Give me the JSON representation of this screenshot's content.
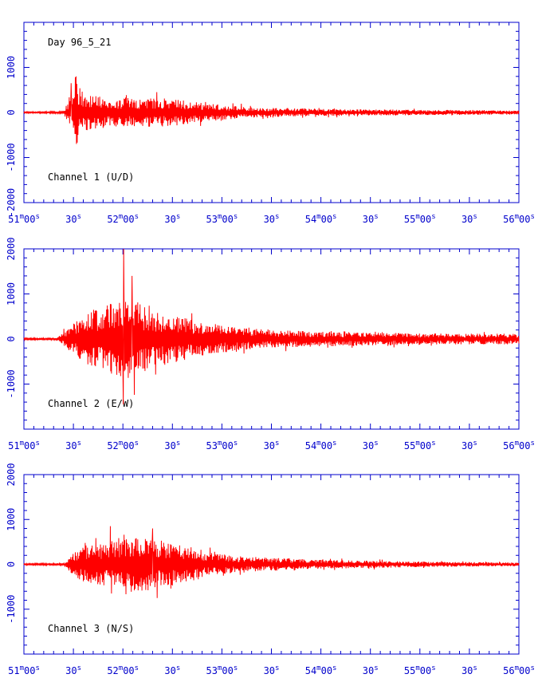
{
  "chart_data": [
    {
      "type": "line",
      "annotation_top": "Day 96_5_21",
      "annotation_bottom": "Channel 1 (U/D)",
      "ylim": [
        -2000,
        2000
      ],
      "yticks": [
        "1000",
        "0",
        "-1000",
        "-2000"
      ],
      "ytick_values": [
        1000,
        0,
        -1000,
        -2000
      ],
      "envelope": [
        {
          "t": 0,
          "a": 15
        },
        {
          "t": 24,
          "a": 20
        },
        {
          "t": 26,
          "a": 180
        },
        {
          "t": 30,
          "a": 350
        },
        {
          "t": 32,
          "a": 700
        },
        {
          "t": 34,
          "a": 560
        },
        {
          "t": 36,
          "a": 420
        },
        {
          "t": 50,
          "a": 330
        },
        {
          "t": 65,
          "a": 320
        },
        {
          "t": 85,
          "a": 310
        },
        {
          "t": 95,
          "a": 280
        },
        {
          "t": 110,
          "a": 200
        },
        {
          "t": 140,
          "a": 110
        },
        {
          "t": 200,
          "a": 70
        },
        {
          "t": 300,
          "a": 45
        }
      ],
      "spikes": [
        {
          "t": 31.5,
          "v": 800
        },
        {
          "t": 31.8,
          "v": -700
        },
        {
          "t": 28.5,
          "v": 650
        }
      ],
      "series_color": "#ff0000"
    },
    {
      "type": "line",
      "annotation_bottom": "Channel 2 (E/W)",
      "ylim": [
        -2000,
        2000
      ],
      "yticks": [
        "2000",
        "1000",
        "0",
        "-1000"
      ],
      "ytick_values": [
        2000,
        1000,
        0,
        -1000
      ],
      "envelope": [
        {
          "t": 0,
          "a": 20
        },
        {
          "t": 20,
          "a": 30
        },
        {
          "t": 24,
          "a": 150
        },
        {
          "t": 30,
          "a": 350
        },
        {
          "t": 42,
          "a": 650
        },
        {
          "t": 52,
          "a": 800
        },
        {
          "t": 60,
          "a": 900
        },
        {
          "t": 64,
          "a": 1000
        },
        {
          "t": 70,
          "a": 800
        },
        {
          "t": 80,
          "a": 600
        },
        {
          "t": 90,
          "a": 550
        },
        {
          "t": 100,
          "a": 450
        },
        {
          "t": 120,
          "a": 300
        },
        {
          "t": 150,
          "a": 200
        },
        {
          "t": 200,
          "a": 150
        },
        {
          "t": 260,
          "a": 120
        },
        {
          "t": 300,
          "a": 120
        }
      ],
      "spikes": [
        {
          "t": 60.5,
          "v": 2000
        },
        {
          "t": 60.2,
          "v": -1450
        },
        {
          "t": 65.5,
          "v": 1400
        }
      ],
      "series_color": "#ff0000"
    },
    {
      "type": "line",
      "annotation_bottom": "Channel 3 (N/S)",
      "ylim": [
        -2000,
        2000
      ],
      "yticks": [
        "2000",
        "1000",
        "0",
        "-1000"
      ],
      "ytick_values": [
        2000,
        1000,
        0,
        -1000
      ],
      "envelope": [
        {
          "t": 0,
          "a": 15
        },
        {
          "t": 24,
          "a": 25
        },
        {
          "t": 28,
          "a": 200
        },
        {
          "t": 35,
          "a": 380
        },
        {
          "t": 50,
          "a": 480
        },
        {
          "t": 58,
          "a": 600
        },
        {
          "t": 65,
          "a": 620
        },
        {
          "t": 80,
          "a": 560
        },
        {
          "t": 90,
          "a": 480
        },
        {
          "t": 105,
          "a": 300
        },
        {
          "t": 130,
          "a": 180
        },
        {
          "t": 180,
          "a": 100
        },
        {
          "t": 240,
          "a": 60
        },
        {
          "t": 300,
          "a": 40
        }
      ],
      "spikes": [
        {
          "t": 52.5,
          "v": 850
        },
        {
          "t": 53.0,
          "v": -650
        },
        {
          "t": 78.0,
          "v": 800
        }
      ],
      "series_color": "#ff0000"
    }
  ],
  "x_axis": {
    "start": "51m00s",
    "end": "56m00s",
    "tick_interval_s": 30,
    "ticks": [
      {
        "main": "51",
        "sup": "m",
        "sec": "00",
        "ssup": "s"
      },
      {
        "main": "30",
        "sup": "",
        "sec": "",
        "ssup": "s"
      },
      {
        "main": "52",
        "sup": "m",
        "sec": "00",
        "ssup": "s"
      },
      {
        "main": "30",
        "sup": "",
        "sec": "",
        "ssup": "s"
      },
      {
        "main": "53",
        "sup": "m",
        "sec": "00",
        "ssup": "s"
      },
      {
        "main": "30",
        "sup": "",
        "sec": "",
        "ssup": "s"
      },
      {
        "main": "54",
        "sup": "m",
        "sec": "00",
        "ssup": "s"
      },
      {
        "main": "30",
        "sup": "",
        "sec": "",
        "ssup": "s"
      },
      {
        "main": "55",
        "sup": "m",
        "sec": "00",
        "ssup": "s"
      },
      {
        "main": "30",
        "sup": "",
        "sec": "",
        "ssup": "s"
      },
      {
        "main": "56",
        "sup": "m",
        "sec": "00",
        "ssup": "s"
      }
    ]
  },
  "colors": {
    "axis": "#0000cc",
    "trace": "#ff0000",
    "annotation": "#000000",
    "background": "#ffffff"
  }
}
